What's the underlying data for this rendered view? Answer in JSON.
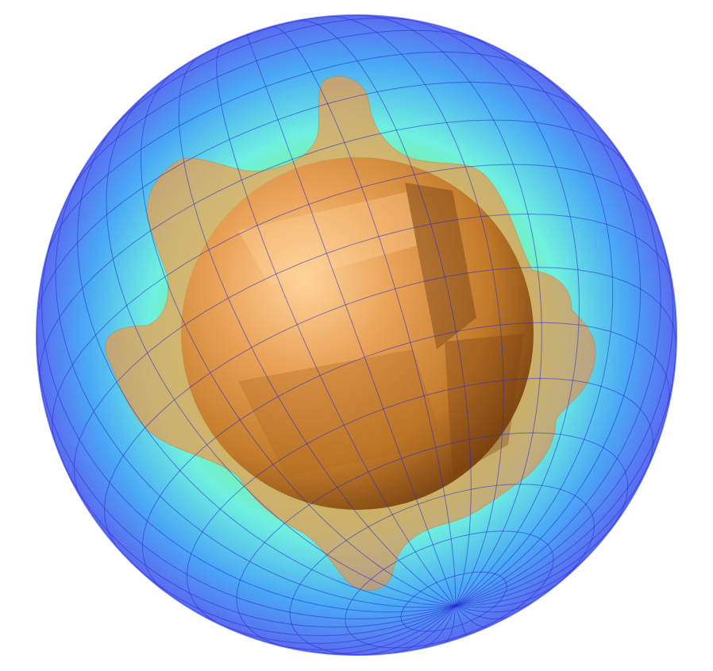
{
  "scene": {
    "background_color": "#ffffff",
    "outer_sphere": {
      "colormap": [
        "#5a6cf0",
        "#4aa8f5",
        "#6ff0e0",
        "#7ef07a",
        "#e8f070"
      ],
      "mesh_color": "#2a2ad0"
    },
    "inner_body": {
      "base_color": "#c27a2a",
      "highlight_color": "#ffd49a",
      "shadow_color": "#6e3a0c"
    },
    "outer_shell": {
      "color": "#e0a055",
      "lobe_count": 8
    }
  }
}
